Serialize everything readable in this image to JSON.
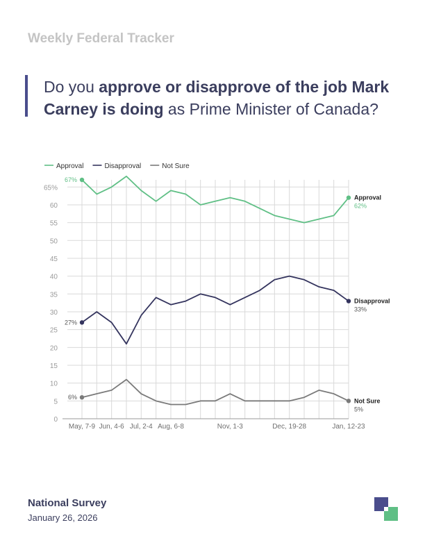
{
  "header": {
    "kicker": "Weekly Federal Tracker",
    "question_pre": "Do you ",
    "question_bold": "approve or disapprove of the job Mark Carney is doing",
    "question_post": " as Prime Minister of Canada?"
  },
  "footer": {
    "title": "National Survey",
    "date": "January 26, 2026"
  },
  "logo": {
    "icon": "brand-logo-icon",
    "colors": [
      "#4a4d8c",
      "#5fbf85"
    ]
  },
  "chart_data": {
    "type": "line",
    "title": "",
    "xlabel": "",
    "ylabel": "",
    "ylim": [
      0,
      67
    ],
    "y_ticks": [
      "0",
      "5",
      "10",
      "15",
      "20",
      "25",
      "30",
      "35",
      "40",
      "45",
      "50",
      "55",
      "60",
      "65%"
    ],
    "y_tick_values": [
      0,
      5,
      10,
      15,
      20,
      25,
      30,
      35,
      40,
      45,
      50,
      55,
      60,
      65
    ],
    "x_labels": [
      {
        "index": 0,
        "label": "May, 7-9"
      },
      {
        "index": 2,
        "label": "Jun, 4-6"
      },
      {
        "index": 4,
        "label": "Jul, 2-4"
      },
      {
        "index": 6,
        "label": "Aug, 6-8"
      },
      {
        "index": 10,
        "label": "Nov, 1-3"
      },
      {
        "index": 14,
        "label": "Dec, 19-28"
      },
      {
        "index": 18,
        "label": "Jan, 12-23"
      }
    ],
    "grid": true,
    "legend_position": "top-left",
    "series": [
      {
        "name": "Approval",
        "color": "#5fbf85",
        "values": [
          67,
          63,
          65,
          68,
          64,
          61,
          64,
          63,
          60,
          61,
          62,
          61,
          59,
          57,
          56,
          55,
          56,
          57,
          62
        ],
        "start_label": "67%",
        "end_name": "Approval",
        "end_value": "62%"
      },
      {
        "name": "Disapproval",
        "color": "#34345e",
        "values": [
          27,
          30,
          27,
          21,
          29,
          34,
          32,
          33,
          35,
          34,
          32,
          34,
          36,
          39,
          40,
          39,
          37,
          36,
          33
        ],
        "start_label": "27%",
        "end_name": "Disapproval",
        "end_value": "33%"
      },
      {
        "name": "Not Sure",
        "color": "#7a7a7a",
        "values": [
          6,
          7,
          8,
          11,
          7,
          5,
          4,
          4,
          5,
          5,
          7,
          5,
          5,
          5,
          5,
          6,
          8,
          7,
          5
        ],
        "start_label": "6%",
        "end_name": "Not Sure",
        "end_value": "5%"
      }
    ]
  }
}
